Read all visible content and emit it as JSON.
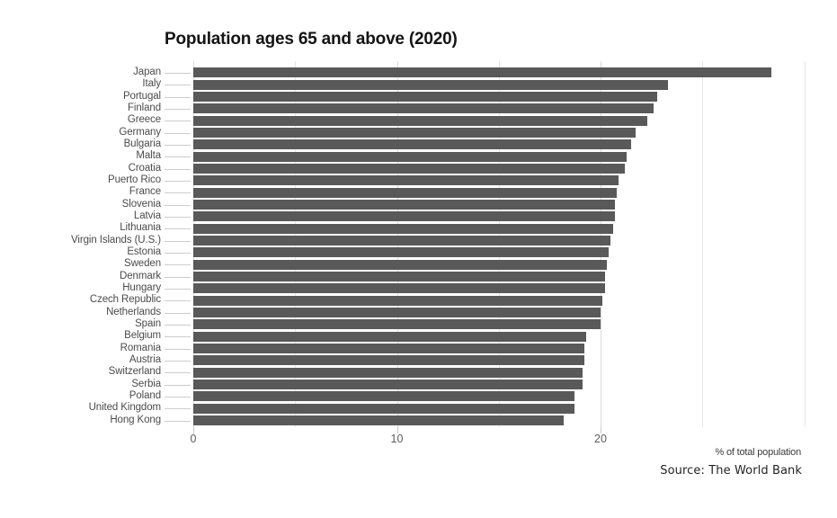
{
  "header": {
    "title": "Population ages 65 and above (2020)"
  },
  "chart_data": {
    "type": "bar",
    "orientation": "horizontal",
    "title": "Population ages 65 and above (2020)",
    "xlabel": "% of total population",
    "ylabel": "",
    "xlim": [
      0,
      30
    ],
    "x_tick_values": [
      0,
      10,
      20
    ],
    "x_tick_labels": [
      "0",
      "10",
      "20"
    ],
    "gridline_values": [
      0,
      5,
      10,
      15,
      20,
      25,
      30
    ],
    "grid": true,
    "legend": false,
    "sort": "descending",
    "bar_color": "#595959",
    "categories": [
      "Japan",
      "Italy",
      "Portugal",
      "Finland",
      "Greece",
      "Germany",
      "Bulgaria",
      "Malta",
      "Croatia",
      "Puerto Rico",
      "France",
      "Slovenia",
      "Latvia",
      "Lithuania",
      "Virgin Islands (U.S.)",
      "Estonia",
      "Sweden",
      "Denmark",
      "Hungary",
      "Czech Republic",
      "Netherlands",
      "Spain",
      "Belgium",
      "Romania",
      "Austria",
      "Switzerland",
      "Serbia",
      "Poland",
      "United Kingdom",
      "Hong Kong"
    ],
    "values": [
      28.4,
      23.3,
      22.8,
      22.6,
      22.3,
      21.7,
      21.5,
      21.3,
      21.2,
      20.9,
      20.8,
      20.7,
      20.7,
      20.6,
      20.5,
      20.4,
      20.3,
      20.2,
      20.2,
      20.1,
      20.0,
      20.0,
      19.3,
      19.2,
      19.2,
      19.1,
      19.1,
      18.7,
      18.7,
      18.2
    ]
  },
  "footer": {
    "axis_caption": "% of total population",
    "source": "Source: The World Bank"
  }
}
